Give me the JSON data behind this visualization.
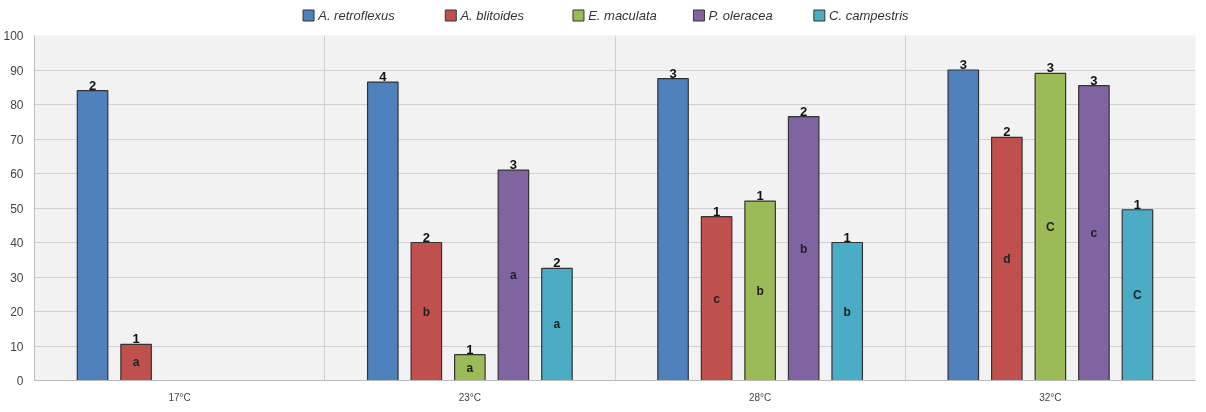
{
  "chart_data": {
    "type": "bar",
    "categories": [
      "17°C",
      "23°C",
      "28°C",
      "32°C"
    ],
    "series": [
      {
        "name": "A. retroflexus",
        "color": "#4f81bd",
        "values": [
          84,
          86.5,
          87.5,
          90
        ]
      },
      {
        "name": "A. blitoides",
        "color": "#c0504d",
        "values": [
          10.5,
          40,
          47.5,
          70.5
        ]
      },
      {
        "name": "E. maculata",
        "color": "#9bbb59",
        "values": [
          null,
          7.5,
          52,
          89
        ]
      },
      {
        "name": "P. oleracea",
        "color": "#8064a2",
        "values": [
          null,
          61,
          76.5,
          85.5
        ]
      },
      {
        "name": "C. campestris",
        "color": "#4bacc6",
        "values": [
          null,
          32.5,
          40,
          49.5
        ]
      }
    ],
    "annotations": [
      "2",
      "1",
      "a",
      "4",
      "2",
      "b",
      "1",
      "a",
      "3",
      "a",
      "2",
      "a",
      "3",
      "1",
      "c",
      "1",
      "b",
      "2",
      "b",
      "1",
      "b",
      "3",
      "2",
      "d",
      "3",
      "C",
      "3",
      "c",
      "1",
      "C"
    ],
    "ylim": [
      0,
      100
    ],
    "yticks": [
      0,
      10,
      20,
      30,
      40,
      50,
      60,
      70,
      80,
      90,
      100
    ],
    "grid": true,
    "legend": "top"
  }
}
